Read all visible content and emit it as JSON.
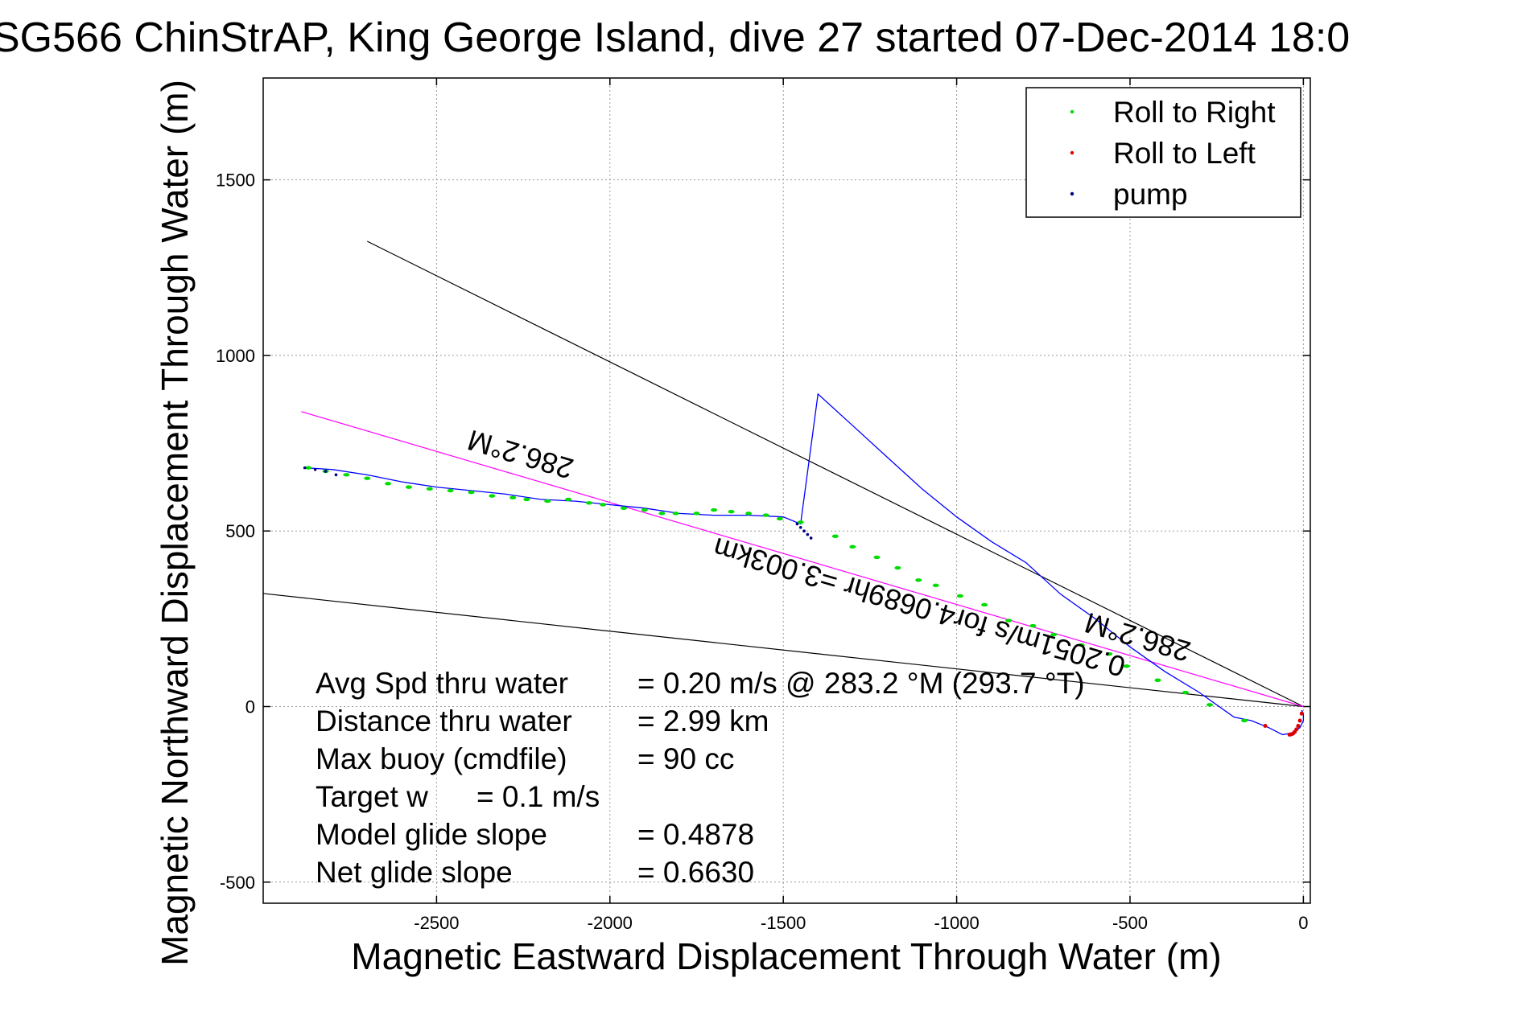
{
  "chart_data": {
    "type": "scatter",
    "title": "SG566 ChinStrAP, King George Island, dive 27 started 07-Dec-2014 18:0",
    "xlabel": "Magnetic Eastward Displacement Through Water (m)",
    "ylabel": "Magnetic Northward Displacement Through Water (m)",
    "xlim": [
      -3000,
      20
    ],
    "ylim": [
      -560,
      1790
    ],
    "grid": true,
    "x_ticks": [
      -2500,
      -2000,
      -1500,
      -1000,
      -500,
      0
    ],
    "y_ticks": [
      -500,
      0,
      500,
      1000,
      1500
    ],
    "legend": {
      "placement": "top-right",
      "entries": [
        {
          "label": "Roll to Right",
          "color": "#00dd00"
        },
        {
          "label": "Roll to Left",
          "color": "#dd0000"
        },
        {
          "label": "pump",
          "color": "#000080"
        }
      ]
    },
    "track": {
      "color": "#0000ff",
      "x": [
        -5,
        0,
        0,
        -10,
        -30,
        -60,
        -100,
        -150,
        -200,
        -300,
        -400,
        -500,
        -600,
        -700,
        -800,
        -900,
        -1000,
        -1100,
        -1200,
        -1300,
        -1400,
        -1450,
        -1500,
        -1600,
        -1700,
        -1800,
        -1900,
        -2000,
        -2100,
        -2200,
        -2300,
        -2400,
        -2500,
        -2600,
        -2700,
        -2800,
        -2880
      ],
      "y": [
        -10,
        -20,
        -40,
        -60,
        -75,
        -80,
        -60,
        -40,
        -30,
        40,
        100,
        170,
        250,
        320,
        410,
        470,
        540,
        620,
        710,
        800,
        890,
        520,
        540,
        545,
        545,
        550,
        565,
        575,
        585,
        590,
        605,
        615,
        625,
        640,
        660,
        675,
        680
      ]
    },
    "track_y_corrected": [
      -10,
      -20,
      -40,
      -60,
      -75,
      -80,
      -60,
      -40,
      -30,
      40,
      100,
      170,
      250,
      320,
      410,
      470,
      540,
      620,
      710,
      800,
      890,
      520,
      540,
      545,
      545,
      550,
      565,
      575,
      585,
      590,
      605,
      615,
      625,
      640,
      660,
      675,
      680
    ],
    "roll_right": {
      "x": [
        -170,
        -270,
        -340,
        -420,
        -510,
        -560,
        -640,
        -720,
        -780,
        -850,
        -920,
        -990,
        -1060,
        -1110,
        -1170,
        -1230,
        -1300,
        -1350,
        -1450,
        -1510,
        -1550,
        -1600,
        -1650,
        -1700,
        -1750,
        -1810,
        -1850,
        -1900,
        -1960,
        -2020,
        -2060,
        -2120,
        -2180,
        -2240,
        -2280,
        -2340,
        -2400,
        -2460,
        -2520,
        -2580,
        -2640,
        -2700,
        -2760,
        -2820,
        -2870
      ],
      "y": [
        -40,
        5,
        40,
        75,
        115,
        150,
        175,
        205,
        230,
        245,
        290,
        315,
        345,
        360,
        395,
        425,
        455,
        485,
        525,
        535,
        545,
        550,
        555,
        560,
        550,
        550,
        550,
        560,
        565,
        575,
        580,
        590,
        585,
        590,
        595,
        600,
        610,
        615,
        620,
        625,
        635,
        650,
        660,
        670,
        680
      ]
    },
    "roll_left": {
      "x": [
        -5,
        -10,
        -15,
        -20,
        -25,
        -30,
        -35,
        -40,
        -110
      ],
      "y": [
        -20,
        -40,
        -55,
        -65,
        -72,
        -77,
        -79,
        -80,
        -55
      ]
    },
    "pump": {
      "x": [
        -1460,
        -1450,
        -1440,
        -1430,
        -1420,
        -2880,
        -2850,
        -2820,
        -2790
      ],
      "y": [
        520,
        510,
        500,
        490,
        480,
        680,
        675,
        670,
        660
      ]
    },
    "black_lines": [
      {
        "x": [
          -2700,
          0
        ],
        "y": [
          1325,
          0
        ]
      },
      {
        "x": [
          -3000,
          0
        ],
        "y": [
          322,
          0
        ]
      }
    ],
    "magenta_line": {
      "x": [
        -2890,
        0
      ],
      "y": [
        840,
        0
      ]
    },
    "annotations": [
      {
        "text": "286.2°M",
        "x": -2250,
        "y": 745
      },
      {
        "text": "286.2°M",
        "x": -470,
        "y": 225
      },
      {
        "text": "0.2051m/s for4.0689hr =3.003km",
        "x": -1100,
        "y": 310
      }
    ]
  },
  "stats": [
    {
      "label": "Avg Spd thru water",
      "value": "=  0.20 m/s @ 283.2 °M (293.7 °T)"
    },
    {
      "label": "Distance thru water",
      "value": "=  2.99 km"
    },
    {
      "label": "Max buoy (cmdfile)",
      "value": "= 90 cc"
    },
    {
      "label": "Target w",
      "value": "= 0.1 m/s"
    },
    {
      "label": "Model glide slope",
      "value": "= 0.4878"
    },
    {
      "label": "Net glide slope",
      "value": "= 0.6630"
    }
  ]
}
